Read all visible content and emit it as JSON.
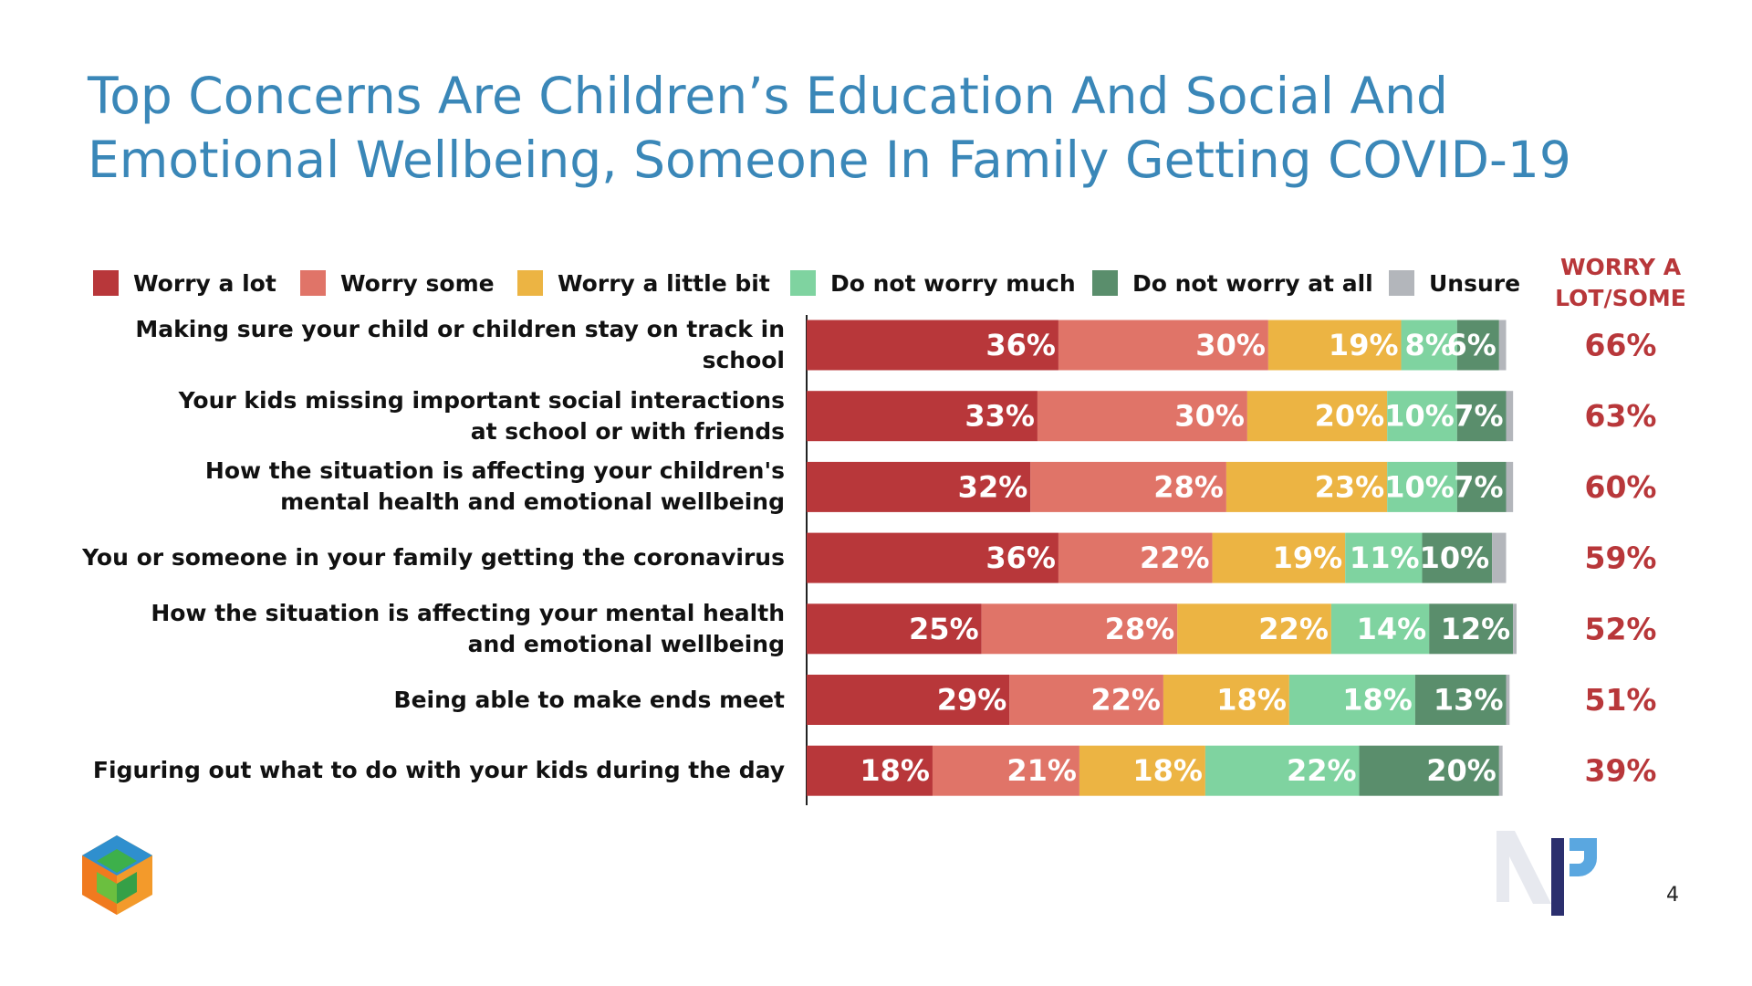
{
  "chart_data": {
    "type": "stacked-bar-horizontal",
    "title": "Top Concerns Are Children’s Education And Social And Emotional Wellbeing, Someone In Family Getting COVID-19",
    "categories": [
      "Making sure your child or children stay on track in school",
      "Your kids missing important social interactions\nat school or with friends",
      "How the situation is affecting your children's\nmental health and emotional wellbeing",
      "You or someone in your family getting the coronavirus",
      "How the situation is affecting your mental health\nand emotional wellbeing",
      "Being able to make ends meet",
      "Figuring out what to do with your kids during the day"
    ],
    "series": [
      {
        "name": "Worry a lot",
        "color": "#b8373a",
        "values": [
          36,
          33,
          32,
          36,
          25,
          29,
          18
        ],
        "value_labels": [
          "36%",
          "33%",
          "32%",
          "36%",
          "25%",
          "29%",
          "18%"
        ]
      },
      {
        "name": "Worry some",
        "color": "#e07468",
        "values": [
          30,
          30,
          28,
          22,
          28,
          22,
          21
        ],
        "value_labels": [
          "30%",
          "30%",
          "28%",
          "22%",
          "28%",
          "22%",
          "21%"
        ]
      },
      {
        "name": "Worry a little bit",
        "color": "#ecb443",
        "values": [
          19,
          20,
          23,
          19,
          22,
          18,
          18
        ],
        "value_labels": [
          "19%",
          "20%",
          "23%",
          "19%",
          "22%",
          "18%",
          "18%"
        ]
      },
      {
        "name": "Do not worry much",
        "color": "#7fd3a0",
        "values": [
          8,
          10,
          10,
          11,
          14,
          18,
          22
        ],
        "value_labels": [
          "8%",
          "10%",
          "10%",
          "11%",
          "14%",
          "18%",
          "22%"
        ]
      },
      {
        "name": "Do not worry at all",
        "color": "#5a8e6c",
        "values": [
          6,
          7,
          7,
          10,
          12,
          13,
          20
        ],
        "value_labels": [
          "6%",
          "7%",
          "7%",
          "10%",
          "12%",
          "13%",
          "20%"
        ]
      },
      {
        "name": "Unsure",
        "color": "#b3b6bb",
        "values": [
          1,
          1,
          1,
          2,
          0.5,
          0.5,
          0.5
        ]
      }
    ],
    "net_title": "WORRY A LOT/SOME",
    "net_values": [
      66,
      63,
      60,
      59,
      52,
      51,
      39
    ],
    "net_value_labels": [
      "66%",
      "63%",
      "60%",
      "59%",
      "52%",
      "51%",
      "39%"
    ],
    "legend": "top"
  },
  "page_number": "4"
}
